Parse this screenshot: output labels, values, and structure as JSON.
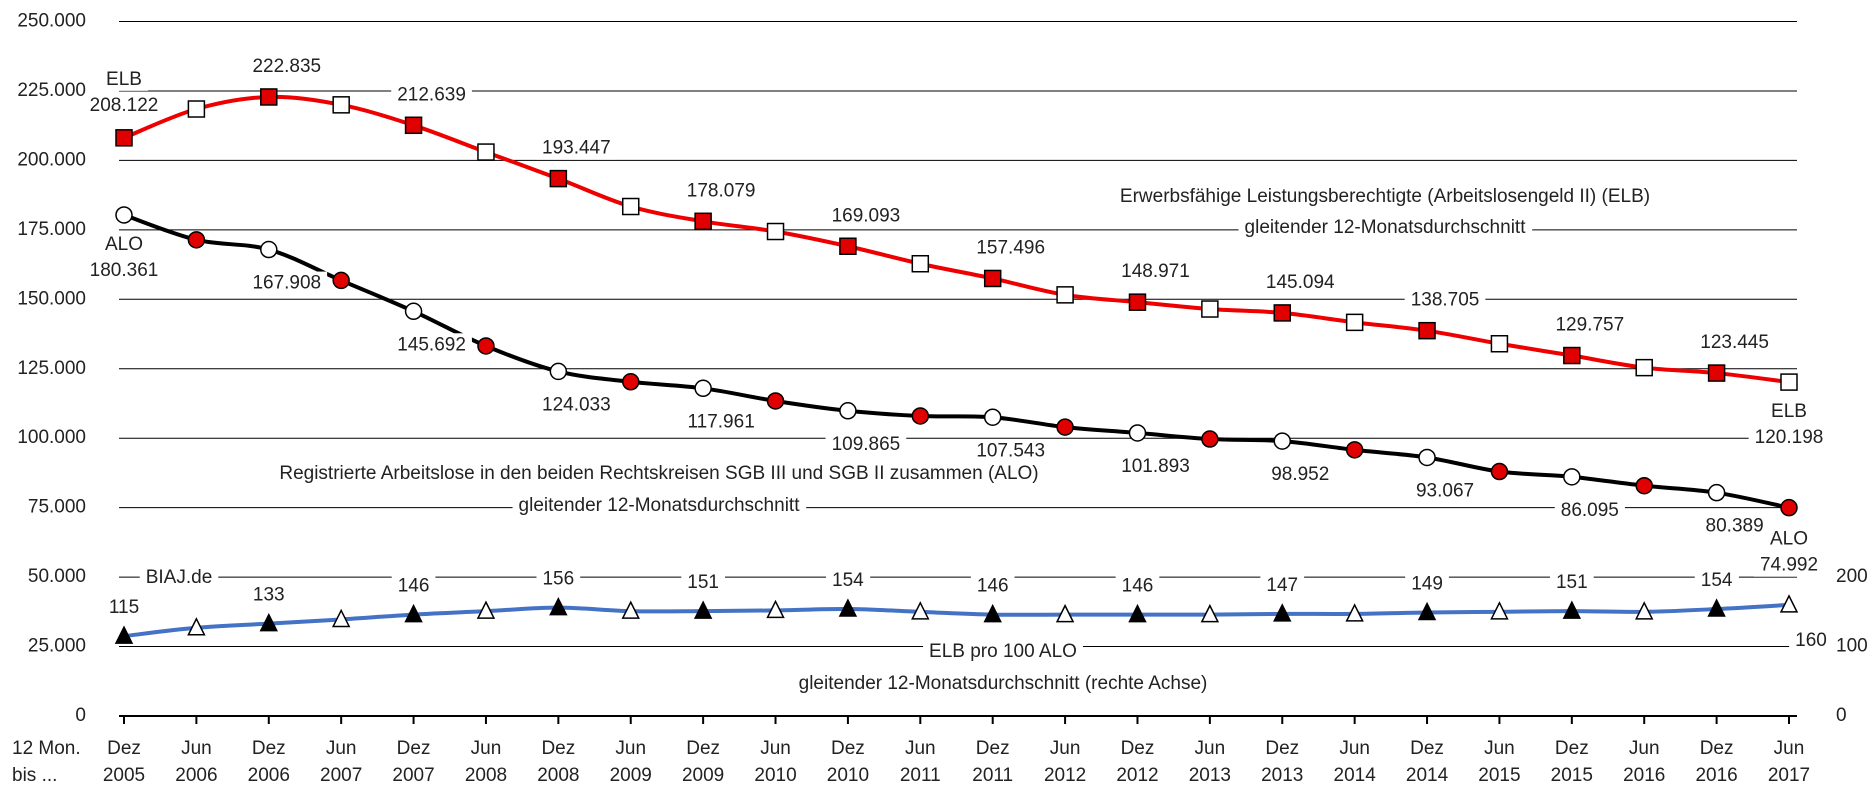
{
  "chart_data": {
    "type": "line",
    "x_label": [
      "12 Mon.",
      "bis ..."
    ],
    "categories": [
      [
        "Dez",
        "2005"
      ],
      [
        "Jun",
        "2006"
      ],
      [
        "Dez",
        "2006"
      ],
      [
        "Jun",
        "2007"
      ],
      [
        "Dez",
        "2007"
      ],
      [
        "Jun",
        "2008"
      ],
      [
        "Dez",
        "2008"
      ],
      [
        "Jun",
        "2009"
      ],
      [
        "Dez",
        "2009"
      ],
      [
        "Jun",
        "2010"
      ],
      [
        "Dez",
        "2010"
      ],
      [
        "Jun",
        "2011"
      ],
      [
        "Dez",
        "2011"
      ],
      [
        "Jun",
        "2012"
      ],
      [
        "Dez",
        "2012"
      ],
      [
        "Jun",
        "2013"
      ],
      [
        "Dez",
        "2013"
      ],
      [
        "Jun",
        "2014"
      ],
      [
        "Dez",
        "2014"
      ],
      [
        "Jun",
        "2015"
      ],
      [
        "Dez",
        "2015"
      ],
      [
        "Jun",
        "2016"
      ],
      [
        "Dez",
        "2016"
      ],
      [
        "Jun",
        "2017"
      ]
    ],
    "ylim": [
      0,
      250000
    ],
    "yticks": [
      0,
      {
        "value": 25000,
        "label": "25.000"
      },
      {
        "value": 50000,
        "label": "50.000"
      },
      {
        "value": 75000,
        "label": "75.000"
      },
      {
        "value": 100000,
        "label": "100.000"
      },
      {
        "value": 125000,
        "label": "125.000"
      },
      {
        "value": 150000,
        "label": "150.000"
      },
      {
        "value": 175000,
        "label": "175.000"
      },
      {
        "value": 200000,
        "label": "200.000"
      },
      {
        "value": 225000,
        "label": "225.000"
      },
      {
        "value": 250000,
        "label": "250.000"
      }
    ],
    "y2lim": [
      0,
      1000
    ],
    "y2ticks": [
      0,
      100,
      200
    ],
    "grid": true,
    "annotation": "BIAJ.de",
    "series": [
      {
        "name": "Erwerbsfähige Leistungsberechtigte (Arbeitslosengeld II) (ELB)",
        "note": "gleitender 12-Monatsdurchschnitt",
        "short_name": "ELB",
        "color": "#ee0000",
        "marker": "square",
        "marker_fills": [
          "#e00000",
          "#ffffff"
        ],
        "values": [
          208122,
          218500,
          222835,
          220000,
          212639,
          203000,
          193447,
          183400,
          178079,
          174400,
          169093,
          162800,
          157496,
          151600,
          148971,
          146500,
          145094,
          141700,
          138705,
          134000,
          129757,
          125400,
          123445,
          120198
        ],
        "value_labels": [
          "208.122",
          null,
          "222.835",
          null,
          "212.639",
          null,
          "193.447",
          null,
          "178.079",
          null,
          "169.093",
          null,
          "157.496",
          null,
          "148.971",
          null,
          "145.094",
          null,
          "138.705",
          null,
          "129.757",
          null,
          "123.445",
          "120.198"
        ]
      },
      {
        "name": "Registrierte Arbeitslose in den beiden Rechtskreisen SGB III und SGB II zusammen (ALO)",
        "note": "gleitender 12-Monatsdurchschnitt",
        "short_name": "ALO",
        "color": "#000000",
        "marker": "circle",
        "marker_fills": [
          "#ffffff",
          "#e00000"
        ],
        "values": [
          180361,
          171400,
          167908,
          156800,
          145692,
          133200,
          124033,
          120300,
          117961,
          113400,
          109865,
          108000,
          107543,
          104000,
          101893,
          99700,
          98952,
          95800,
          93067,
          88000,
          86095,
          82900,
          80389,
          74992
        ],
        "value_labels": [
          "180.361",
          null,
          "167.908",
          null,
          "145.692",
          null,
          "124.033",
          null,
          "117.961",
          null,
          "109.865",
          null,
          "107.543",
          null,
          "101.893",
          null,
          "98.952",
          null,
          "93.067",
          null,
          "86.095",
          null,
          "80.389",
          "74.992"
        ]
      },
      {
        "name": "ELB pro 100 ALO",
        "note": "gleitender 12-Monatsdurchschnitt (rechte Achse)",
        "color": "#4472c4",
        "marker": "triangle",
        "marker_fills": [
          "#000000",
          "#ffffff"
        ],
        "axis": "y2",
        "values": [
          115,
          127,
          133,
          139,
          146,
          151,
          156,
          151,
          151,
          152,
          154,
          150,
          146,
          146,
          146,
          146,
          147,
          147,
          149,
          150,
          151,
          150,
          154,
          160
        ],
        "value_labels": [
          "115",
          null,
          "133",
          null,
          "146",
          null,
          "156",
          null,
          "151",
          null,
          "154",
          null,
          "146",
          null,
          "146",
          null,
          "147",
          null,
          "149",
          null,
          "151",
          null,
          "154",
          "160"
        ]
      }
    ]
  }
}
